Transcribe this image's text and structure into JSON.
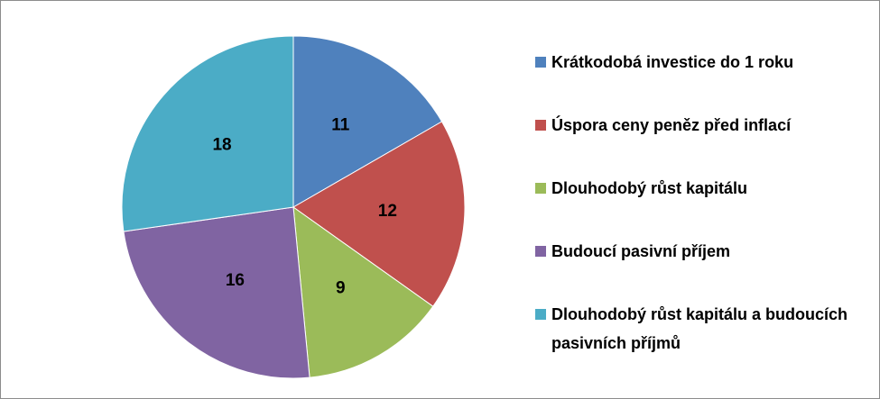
{
  "chart_data": {
    "type": "pie",
    "categories": [
      "Krátkodobá investice do 1 roku",
      "Úspora ceny peněz před inflací",
      "Dlouhodobý růst kapitálu",
      "Budoucí pasivní příjem",
      "Dlouhodobý růst kapitálu a budoucích pasivních příjmů"
    ],
    "values": [
      11,
      12,
      9,
      16,
      18
    ],
    "colors": [
      "#4f81bd",
      "#c0504d",
      "#9bbb59",
      "#8064a2",
      "#4bacc6"
    ],
    "legend": "right"
  }
}
